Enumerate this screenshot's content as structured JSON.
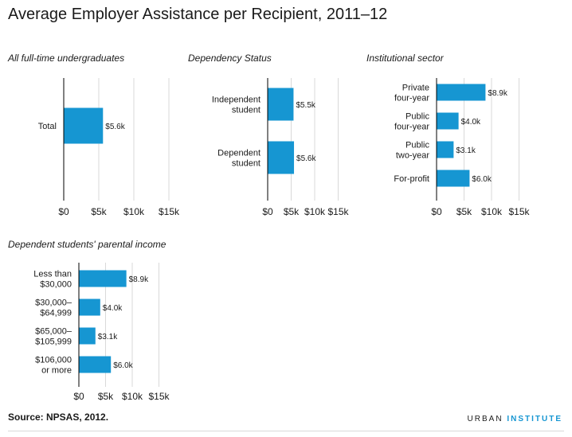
{
  "title": "Average Employer Assistance per Recipient, 2011–12",
  "source": "Source: NPSAS, 2012.",
  "brand": {
    "part1": "URBAN",
    "part2": "INSTITUTE"
  },
  "colors": {
    "bar": "#1696d2",
    "axis": "#000000",
    "grid": "#d9d9d9",
    "text": "#1a1a1a"
  },
  "chart_data": [
    {
      "type": "bar",
      "orientation": "horizontal",
      "title": "All full-time undergraduates",
      "categories": [
        [
          "Total"
        ]
      ],
      "values": [
        5.6
      ],
      "value_labels": [
        "$5.6k"
      ],
      "xlim": [
        0,
        15
      ],
      "xticks": [
        "$0",
        "$5k",
        "$10k",
        "$15k"
      ],
      "grid": true
    },
    {
      "type": "bar",
      "orientation": "horizontal",
      "title": "Dependency Status",
      "categories": [
        [
          "Independent",
          "student"
        ],
        [
          "Dependent",
          "student"
        ]
      ],
      "values": [
        5.5,
        5.6
      ],
      "value_labels": [
        "$5.5k",
        "$5.6k"
      ],
      "xlim": [
        0,
        15
      ],
      "xticks": [
        "$0",
        "$5k",
        "$10k",
        "$15k"
      ],
      "grid": true
    },
    {
      "type": "bar",
      "orientation": "horizontal",
      "title": "Institutional sector",
      "categories": [
        [
          "Private",
          "four-year"
        ],
        [
          "Public",
          "four-year"
        ],
        [
          "Public",
          "two-year"
        ],
        [
          "For-profit"
        ]
      ],
      "values": [
        8.9,
        4.0,
        3.1,
        6.0
      ],
      "value_labels": [
        "$8.9k",
        "$4.0k",
        "$3.1k",
        "$6.0k"
      ],
      "xlim": [
        0,
        15
      ],
      "xticks": [
        "$0",
        "$5k",
        "$10k",
        "$15k"
      ],
      "grid": true
    },
    {
      "type": "bar",
      "orientation": "horizontal",
      "title": "Dependent students' parental income",
      "categories": [
        [
          "Less than",
          "$30,000"
        ],
        [
          "$30,000–",
          "$64,999"
        ],
        [
          "$65,000–",
          "$105,999"
        ],
        [
          "$106,000",
          "or more"
        ]
      ],
      "values": [
        8.9,
        4.0,
        3.1,
        6.0
      ],
      "value_labels": [
        "$8.9k",
        "$4.0k",
        "$3.1k",
        "$6.0k"
      ],
      "xlim": [
        0,
        15
      ],
      "xticks": [
        "$0",
        "$5k",
        "$10k",
        "$15k"
      ],
      "grid": true
    }
  ]
}
